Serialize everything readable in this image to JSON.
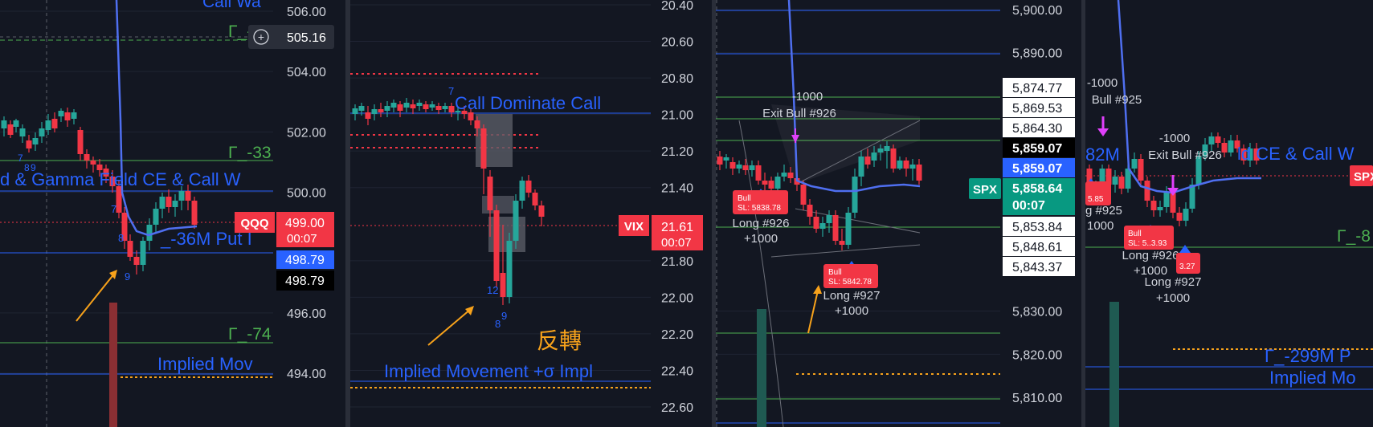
{
  "colors": {
    "bg": "#131722",
    "up": "#26a69a",
    "down": "#f23645",
    "blueLine": "#2962ff",
    "green": "#4caf50",
    "orange": "#f7a21b",
    "grid": "#1f2433",
    "text": "#d1d4dc",
    "magenta": "#e040fb",
    "dotted_red": "#f23645"
  },
  "panels": [
    {
      "symbol": "QQQ",
      "scale_labels": [
        "506.00",
        "504.00",
        "502.00",
        "500.00",
        "496.00",
        "494.00"
      ],
      "scale_values": [
        506,
        504,
        502,
        500,
        496,
        494
      ],
      "crosshair_value": "505.16",
      "price_tag": {
        "price": "499.00",
        "countdown": "00:07"
      },
      "blue_tag": "498.79",
      "black_tag": "498.79",
      "annotations": [
        "Call Wa",
        "Γ_-1",
        "Γ_-33",
        "d & Gamma Field CE & Call W",
        "_-36M  Put I",
        "Γ_-74",
        "Implied Mov",
        "7",
        "8",
        "9",
        "7",
        "8",
        "9"
      ]
    },
    {
      "symbol": "VIX",
      "scale_labels": [
        "20.40",
        "20.60",
        "20.80",
        "21.00",
        "21.20",
        "21.40",
        "21.80",
        "22.00",
        "22.20",
        "22.40",
        "22.60"
      ],
      "scale_values": [
        20.4,
        20.6,
        20.8,
        21.0,
        21.2,
        21.4,
        21.8,
        22.0,
        22.2,
        22.4,
        22.6
      ],
      "price_tag": {
        "price": "21.61",
        "countdown": "00:07"
      },
      "annotations": [
        "Call Dominate   Call",
        "Implied Movement +σ  Impl",
        "反轉",
        "7",
        "12",
        "8",
        "9"
      ]
    },
    {
      "symbol": "SPX",
      "scale_labels": [
        "5,900.00",
        "5,890.00",
        "5,830.00",
        "5,820.00",
        "5,810.00"
      ],
      "scale_values": [
        5900,
        5890,
        5830,
        5820,
        5810
      ],
      "price_stack": [
        "5,874.77",
        "5,869.53",
        "5,864.30",
        "5,859.07",
        "5,859.07",
        "5,858.64",
        "00:07",
        "5,853.84",
        "5,848.61",
        "5,843.37"
      ],
      "annotations": [
        "-1000",
        "Exit Bull #926",
        "Long #926",
        "+1000",
        "Long #927",
        "+1000"
      ],
      "bull_tags": [
        {
          "title": "Bull",
          "sl": "SL: 5838.78"
        },
        {
          "title": "Bull",
          "sl": "SL: 5842.78"
        }
      ]
    },
    {
      "symbol": "SPX",
      "right_tag": "SPX",
      "annotations": [
        "-1000",
        "Bull #925",
        "82M",
        "-1000",
        "Exit Bull #926",
        "ld CE & Call W",
        "g #925",
        "1000",
        "Long #926",
        "+1000",
        "Long #927",
        "+1000",
        "Γ_-8",
        "Γ_-299M  P",
        "Implied Mo"
      ],
      "bull_tags": [
        {
          "title": "",
          "sl": "5.85"
        },
        {
          "title": "Bull",
          "sl": "SL: 5..3.93"
        },
        {
          "title": "",
          "sl": "3.27"
        }
      ]
    }
  ],
  "chart_data": [
    {
      "type": "candlestick",
      "symbol": "QQQ",
      "ylim": [
        493,
        507
      ],
      "y_ticks": [
        506,
        504,
        502,
        500,
        496,
        494
      ],
      "last_price": 499.0,
      "bid_ask": [
        498.79,
        498.79
      ],
      "levels": [
        {
          "name": "Γ_-1",
          "value": 504.9
        },
        {
          "name": "Γ_-33",
          "value": 501.2
        },
        {
          "name": "Γ_-74",
          "value": 495.0
        }
      ]
    },
    {
      "type": "candlestick",
      "symbol": "VIX",
      "ylim": [
        20.38,
        22.65
      ],
      "y_ticks": [
        20.4,
        20.6,
        20.8,
        21.0,
        21.2,
        21.4,
        21.8,
        22.0,
        22.2,
        22.4,
        22.6
      ],
      "inverted": true,
      "last_price": 21.61
    },
    {
      "type": "candlestick",
      "symbol": "SPX",
      "ylim": [
        5802,
        5902
      ],
      "y_ticks": [
        5900,
        5890,
        5830,
        5820,
        5810
      ],
      "last_price": 5858.64,
      "price_levels": [
        5874.77,
        5869.53,
        5864.3,
        5859.07,
        5858.64,
        5853.84,
        5848.61,
        5843.37
      ],
      "trades": [
        {
          "label": "Long #926",
          "qty": 1000,
          "sl": 5838.78
        },
        {
          "label": "Long #927",
          "qty": 1000,
          "sl": 5842.78
        },
        {
          "label": "Exit Bull #926",
          "qty": -1000
        }
      ]
    }
  ]
}
